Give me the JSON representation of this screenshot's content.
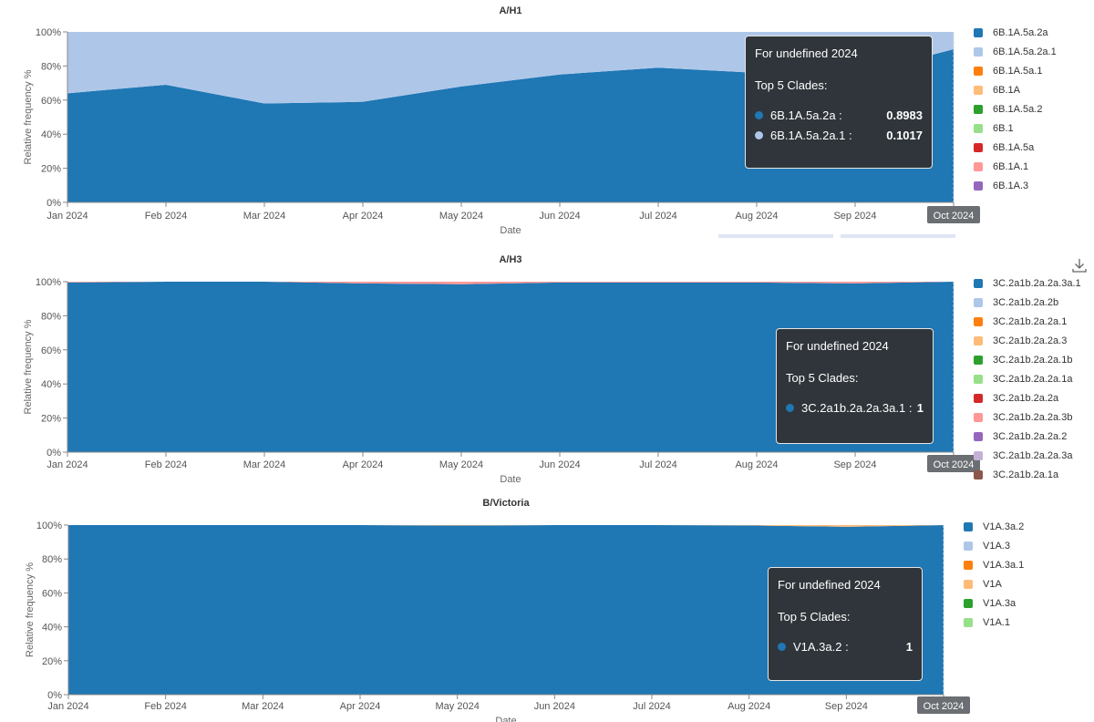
{
  "chart_data": [
    {
      "type": "area",
      "stacked": true,
      "title": "A/H1",
      "xlabel": "Date",
      "ylabel": "Relative frequency %",
      "x_ticks": [
        "Jan 2024",
        "Feb 2024",
        "Mar 2024",
        "Apr 2024",
        "May 2024",
        "Jun 2024",
        "Jul 2024",
        "Aug 2024",
        "Sep 2024",
        "Oct 2024"
      ],
      "y_ticks": [
        "0%",
        "20%",
        "40%",
        "60%",
        "80%",
        "100%"
      ],
      "ylim": [
        0,
        100
      ],
      "series": [
        {
          "name": "6B.1A.5a.2a",
          "color": "#1f77b4",
          "values": [
            0.64,
            0.69,
            0.58,
            0.59,
            0.68,
            0.75,
            0.79,
            0.76,
            0.75,
            0.8983
          ]
        },
        {
          "name": "6B.1A.5a.2a.1",
          "color": "#aec7e8",
          "values": [
            0.36,
            0.31,
            0.42,
            0.41,
            0.32,
            0.25,
            0.21,
            0.24,
            0.25,
            0.1017
          ]
        }
      ],
      "legend": [
        {
          "name": "6B.1A.5a.2a",
          "color": "#1f77b4"
        },
        {
          "name": "6B.1A.5a.2a.1",
          "color": "#aec7e8"
        },
        {
          "name": "6B.1A.5a.1",
          "color": "#ff7f0e"
        },
        {
          "name": "6B.1A",
          "color": "#ffbb78"
        },
        {
          "name": "6B.1A.5a.2",
          "color": "#2ca02c"
        },
        {
          "name": "6B.1",
          "color": "#98df8a"
        },
        {
          "name": "6B.1A.5a",
          "color": "#d62728"
        },
        {
          "name": "6B.1A.1",
          "color": "#ff9896"
        },
        {
          "name": "6B.1A.3",
          "color": "#9467bd"
        }
      ],
      "highlight_tick": "Oct 2024",
      "tooltip": {
        "header": "For undefined 2024",
        "subheader": "Top 5 Clades:",
        "rows": [
          {
            "name": "6B.1A.5a.2a :",
            "value": "0.8983",
            "color": "#1f77b4"
          },
          {
            "name": "6B.1A.5a.2a.1 :",
            "value": "0.1017",
            "color": "#aec7e8"
          }
        ]
      }
    },
    {
      "type": "area",
      "stacked": true,
      "title": "A/H3",
      "xlabel": "Date",
      "ylabel": "Relative frequency %",
      "x_ticks": [
        "Jan 2024",
        "Feb 2024",
        "Mar 2024",
        "Apr 2024",
        "May 2024",
        "Jun 2024",
        "Jul 2024",
        "Aug 2024",
        "Sep 2024",
        "Oct 2024"
      ],
      "y_ticks": [
        "0%",
        "20%",
        "40%",
        "60%",
        "80%",
        "100%"
      ],
      "ylim": [
        0,
        100
      ],
      "series": [
        {
          "name": "3C.2a1b.2a.2a.3a.1",
          "color": "#1f77b4",
          "values": [
            0.995,
            1,
            1,
            0.99,
            0.985,
            0.995,
            0.995,
            0.995,
            0.99,
            1
          ]
        },
        {
          "name": "3C.2a1b.2a.2a.3b",
          "color": "#ff9896",
          "values": [
            0.005,
            0,
            0,
            0.01,
            0.015,
            0.005,
            0.005,
            0.005,
            0.01,
            0
          ]
        }
      ],
      "legend": [
        {
          "name": "3C.2a1b.2a.2a.3a.1",
          "color": "#1f77b4"
        },
        {
          "name": "3C.2a1b.2a.2b",
          "color": "#aec7e8"
        },
        {
          "name": "3C.2a1b.2a.2a.1",
          "color": "#ff7f0e"
        },
        {
          "name": "3C.2a1b.2a.2a.3",
          "color": "#ffbb78"
        },
        {
          "name": "3C.2a1b.2a.2a.1b",
          "color": "#2ca02c"
        },
        {
          "name": "3C.2a1b.2a.2a.1a",
          "color": "#98df8a"
        },
        {
          "name": "3C.2a1b.2a.2a",
          "color": "#d62728"
        },
        {
          "name": "3C.2a1b.2a.2a.3b",
          "color": "#ff9896"
        },
        {
          "name": "3C.2a1b.2a.2a.2",
          "color": "#9467bd"
        },
        {
          "name": "3C.2a1b.2a.2a.3a",
          "color": "#c5b0d5"
        },
        {
          "name": "3C.2a1b.2a.1a",
          "color": "#8c564b"
        }
      ],
      "highlight_tick": "Oct 2024",
      "tooltip": {
        "header": "For undefined 2024",
        "subheader": "Top 5 Clades:",
        "rows": [
          {
            "name": "3C.2a1b.2a.2a.3a.1 :",
            "value": "1",
            "color": "#1f77b4"
          }
        ]
      }
    },
    {
      "type": "area",
      "stacked": true,
      "title": "B/Victoria",
      "xlabel": "Date",
      "ylabel": "Relative frequency %",
      "x_ticks": [
        "Jan 2024",
        "Feb 2024",
        "Mar 2024",
        "Apr 2024",
        "May 2024",
        "Jun 2024",
        "Jul 2024",
        "Aug 2024",
        "Sep 2024",
        "Oct 2024"
      ],
      "y_ticks": [
        "0%",
        "20%",
        "40%",
        "60%",
        "80%",
        "100%"
      ],
      "ylim": [
        0,
        100
      ],
      "series": [
        {
          "name": "V1A.3a.2",
          "color": "#1f77b4",
          "values": [
            1,
            1,
            1,
            1,
            0.997,
            1,
            1,
            0.998,
            0.99,
            1
          ]
        },
        {
          "name": "V1A",
          "color": "#ffbb78",
          "values": [
            0,
            0,
            0,
            0,
            0.003,
            0,
            0,
            0.002,
            0.01,
            0
          ]
        }
      ],
      "legend": [
        {
          "name": "V1A.3a.2",
          "color": "#1f77b4"
        },
        {
          "name": "V1A.3",
          "color": "#aec7e8"
        },
        {
          "name": "V1A.3a.1",
          "color": "#ff7f0e"
        },
        {
          "name": "V1A",
          "color": "#ffbb78"
        },
        {
          "name": "V1A.3a",
          "color": "#2ca02c"
        },
        {
          "name": "V1A.1",
          "color": "#98df8a"
        }
      ],
      "highlight_tick": "Oct 2024",
      "tooltip": {
        "header": "For undefined 2024",
        "subheader": "Top 5 Clades:",
        "rows": [
          {
            "name": "V1A.3a.2 :",
            "value": "1",
            "color": "#1f77b4"
          }
        ]
      }
    }
  ],
  "toolbar": {
    "download_icon": "download-icon"
  }
}
